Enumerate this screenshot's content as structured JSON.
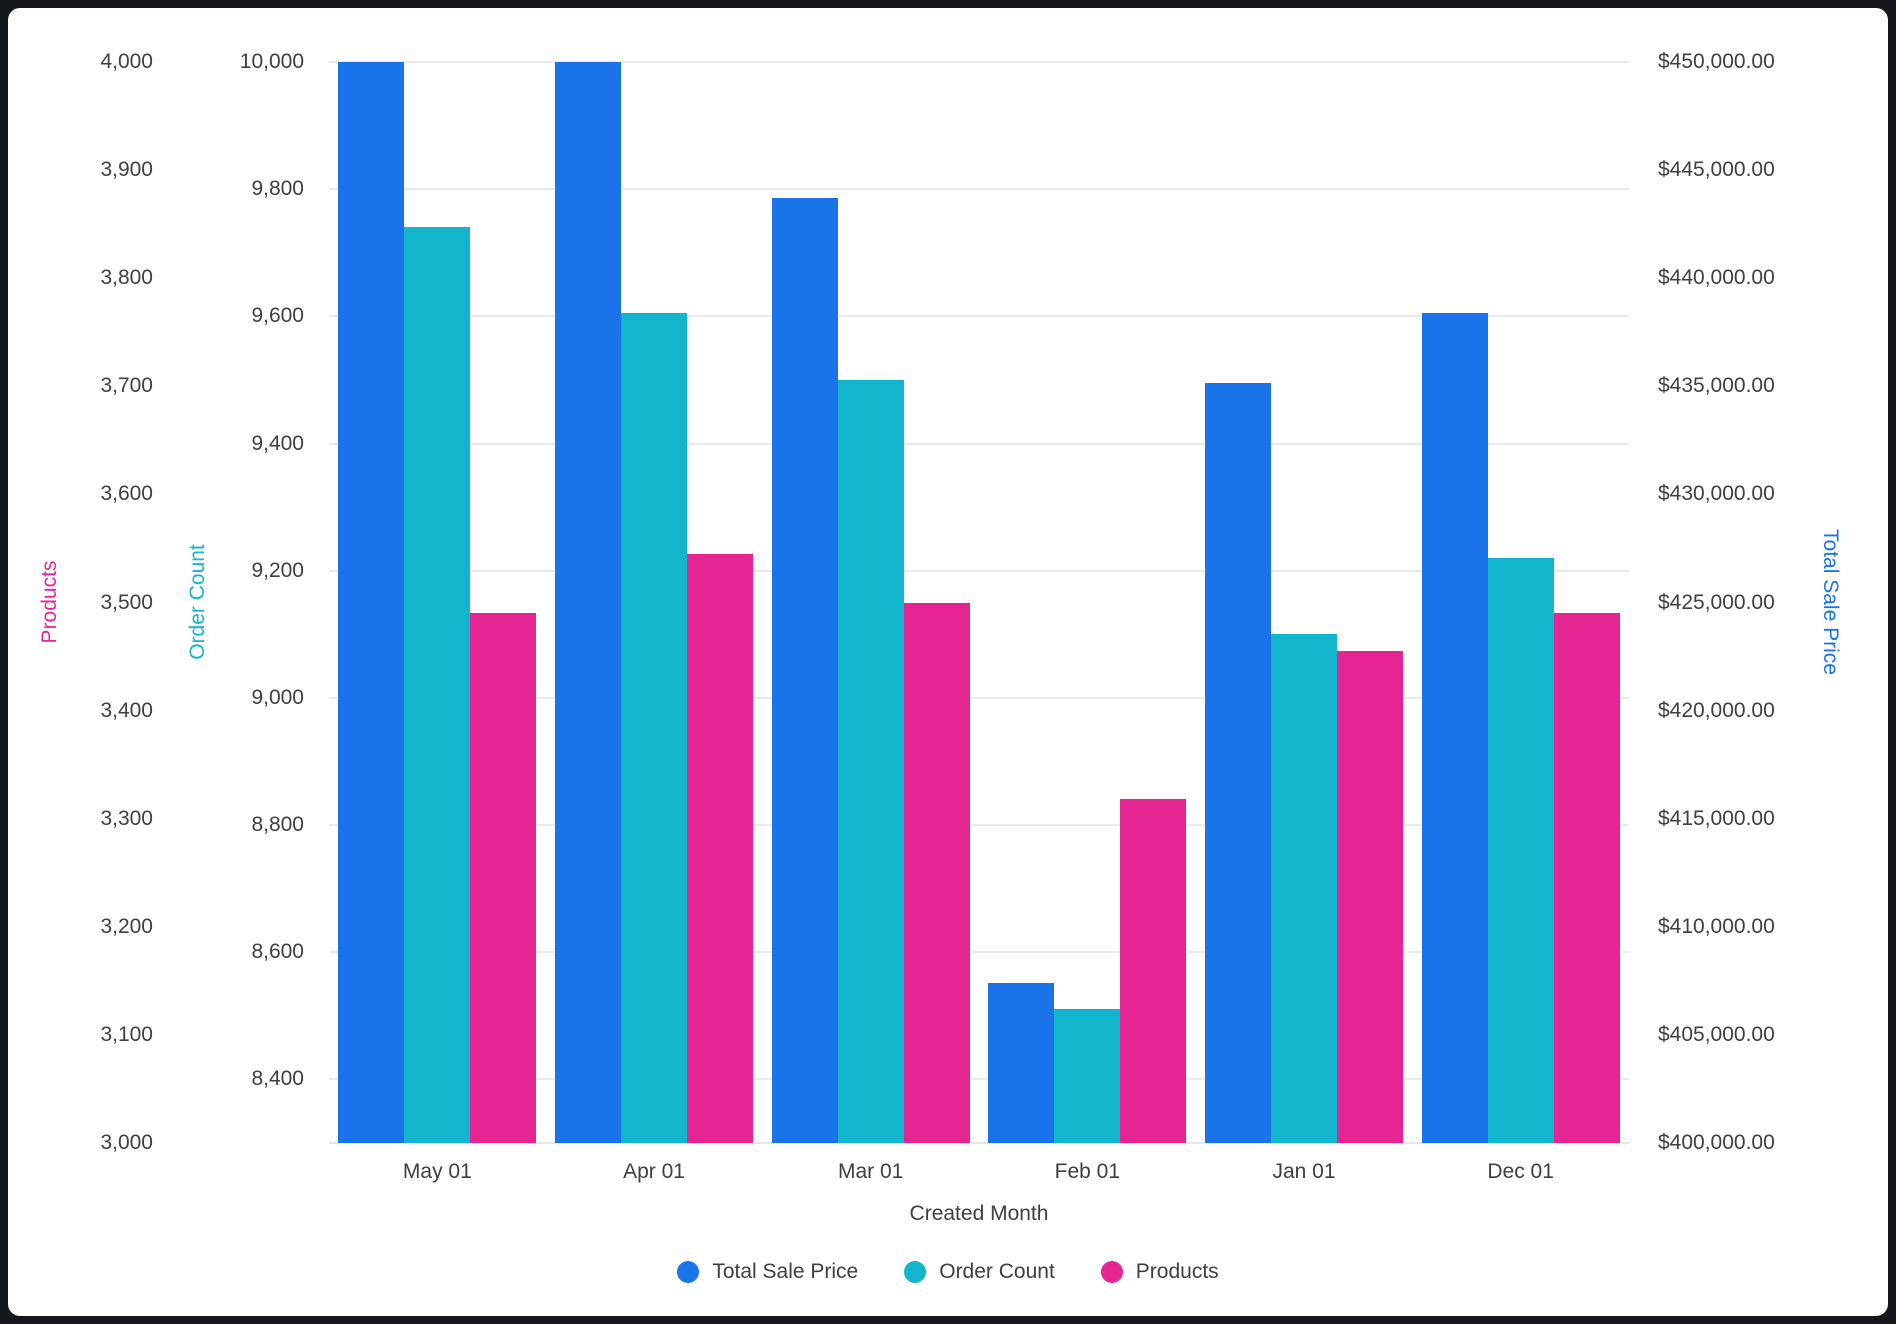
{
  "chart_data": {
    "type": "bar",
    "title": "",
    "xlabel": "Created Month",
    "categories": [
      "May 01",
      "Apr 01",
      "Mar 01",
      "Feb 01",
      "Jan 01",
      "Dec 01"
    ],
    "series": [
      {
        "name": "Total Sale Price",
        "axis": "price",
        "color": "#1a73e8",
        "values": [
          450000,
          450000,
          443700,
          407400,
          435150,
          438400
        ]
      },
      {
        "name": "Order Count",
        "axis": "orders",
        "color": "#12b5cb",
        "values": [
          9740,
          9605,
          9500,
          8510,
          9100,
          9220
        ]
      },
      {
        "name": "Products",
        "axis": "products",
        "color": "#e52592",
        "values": [
          3490,
          3545,
          3500,
          3318,
          3455,
          3490
        ]
      }
    ],
    "axes": {
      "products": {
        "label": "Products",
        "color": "#e52592",
        "min": 3000,
        "max": 4000,
        "tick_values": [
          4000,
          3900,
          3800,
          3700,
          3600,
          3500,
          3400,
          3300,
          3200,
          3100,
          3000
        ],
        "tick_labels": [
          "4,000",
          "3,900",
          "3,800",
          "3,700",
          "3,600",
          "3,500",
          "3,400",
          "3,300",
          "3,200",
          "3,100",
          "3,000"
        ]
      },
      "orders": {
        "label": "Order Count",
        "color": "#12b5cb",
        "min": 8300,
        "max": 10000,
        "tick_values": [
          10000,
          9800,
          9600,
          9400,
          9200,
          9000,
          8800,
          8600,
          8400
        ],
        "tick_labels": [
          "10,000",
          "9,800",
          "9,600",
          "9,400",
          "9,200",
          "9,000",
          "8,800",
          "8,600",
          "8,400"
        ]
      },
      "price": {
        "label": "Total Sale Price",
        "color": "#1a73e8",
        "min": 400000,
        "max": 450000,
        "tick_values": [
          450000,
          445000,
          440000,
          435000,
          430000,
          425000,
          420000,
          415000,
          410000,
          405000,
          400000
        ],
        "tick_labels": [
          "$450,000.00",
          "$445,000.00",
          "$440,000.00",
          "$435,000.00",
          "$430,000.00",
          "$425,000.00",
          "$420,000.00",
          "$415,000.00",
          "$410,000.00",
          "$405,000.00",
          "$400,000.00"
        ]
      }
    },
    "gridline_axis": "orders",
    "legend": [
      "Total Sale Price",
      "Order Count",
      "Products"
    ],
    "legend_position": "bottom",
    "grid": true
  },
  "colors": {
    "gridline": "#e8eaed",
    "tick_text": "#3c4043",
    "background": "#ffffff",
    "frame": "#14181d"
  }
}
